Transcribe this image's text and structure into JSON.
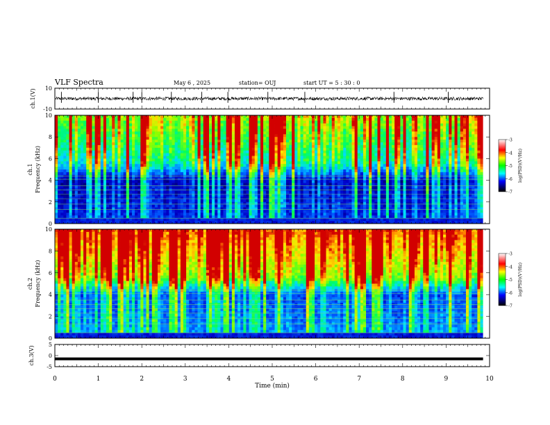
{
  "header": {
    "title": "VLF Spectra",
    "date": "May 6 , 2025",
    "station": "station= OUJ",
    "start": "start UT = 5 : 30 : 0"
  },
  "chart_data": [
    {
      "type": "line",
      "name": "ch1-waveform",
      "ylabel": "ch.1(V)",
      "ylim": [
        -10,
        10
      ],
      "yticks": [
        "10",
        "-10"
      ],
      "xlim": [
        0,
        10
      ],
      "baseline": 0,
      "spike_times": [
        0.15,
        1.0,
        1.8,
        2.0,
        2.68,
        3.38,
        3.98,
        4.9,
        5.75,
        7.8,
        9.05
      ]
    },
    {
      "type": "heatmap",
      "name": "ch1-spectrogram",
      "ylabel": "ch.1 Frequency (kHz)",
      "ylim": [
        0,
        10
      ],
      "yticks": [
        "0",
        "2",
        "4",
        "6",
        "8",
        "10"
      ],
      "xlim": [
        0,
        9.85
      ],
      "colorbar": {
        "label": "log(PSD)(V²/Hz)",
        "range": [
          -7,
          -3
        ],
        "ticks": [
          "-3",
          "-4",
          "-5",
          "-6",
          "-7"
        ]
      },
      "horizontal_lines_khz": [
        0.5,
        1.3,
        1.8,
        2.3,
        2.7,
        3.1,
        3.5,
        4.1,
        4.4
      ]
    },
    {
      "type": "heatmap",
      "name": "ch2-spectrogram",
      "ylabel": "ch.2 Frequency (kHz)",
      "ylim": [
        0,
        10
      ],
      "yticks": [
        "0",
        "2",
        "4",
        "6",
        "8",
        "10"
      ],
      "xlim": [
        0,
        9.85
      ],
      "colorbar": {
        "label": "log(PSD)(V²/Hz)",
        "range": [
          -7,
          -3
        ],
        "ticks": [
          "-3",
          "-4",
          "-5",
          "-6",
          "-7"
        ]
      },
      "horizontal_lines_khz": [
        0.5,
        1.3,
        1.8,
        2.3,
        2.7,
        3.1,
        3.5,
        4.1,
        4.4
      ]
    },
    {
      "type": "line",
      "name": "ch3-waveform",
      "ylabel": "ch.3(V)",
      "ylim": [
        -5,
        5
      ],
      "yticks": [
        "5",
        "0",
        "-5"
      ],
      "xlim": [
        0,
        9.85
      ],
      "level": -1.5
    }
  ],
  "xaxis": {
    "label": "Time (min)",
    "range": [
      0,
      10
    ],
    "ticks": [
      "0",
      "1",
      "2",
      "3",
      "4",
      "5",
      "6",
      "7",
      "8",
      "9",
      "10"
    ]
  },
  "colors": {
    "spectrum_low": "#000066",
    "spectrum_high": "#cc0000",
    "waveform": "#000000"
  }
}
